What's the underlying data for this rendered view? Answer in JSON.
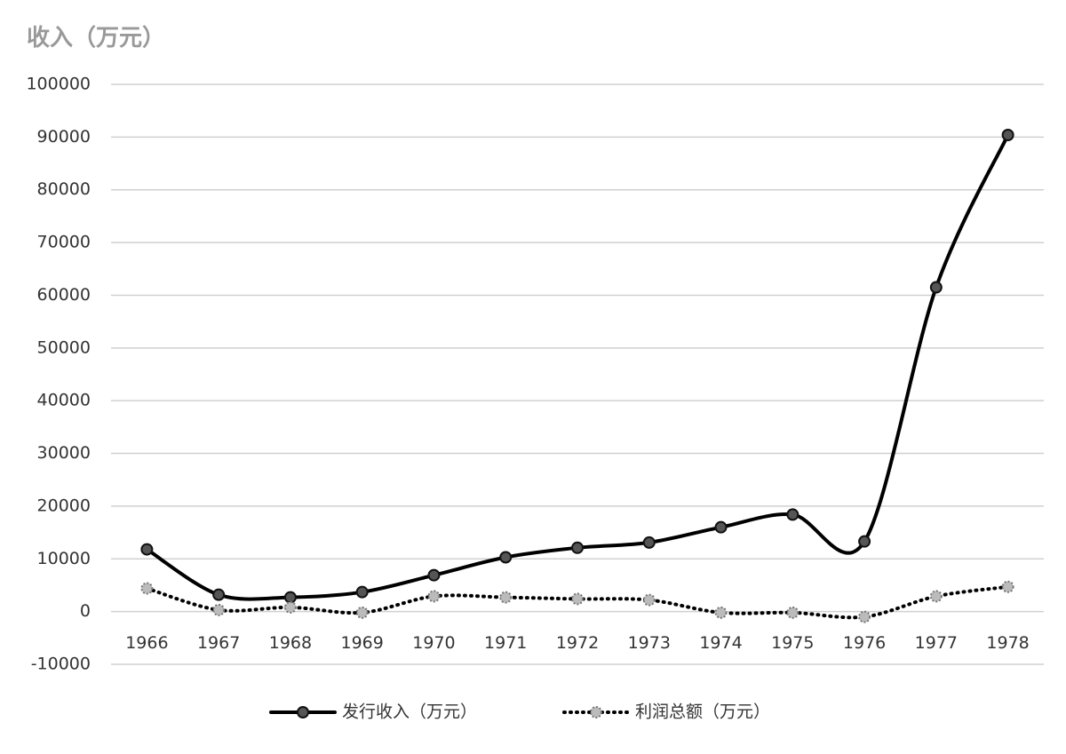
{
  "chart_data": {
    "type": "line",
    "y_axis_title": "收入（万元）",
    "categories": [
      "1966",
      "1967",
      "1968",
      "1969",
      "1970",
      "1971",
      "1972",
      "1973",
      "1974",
      "1975",
      "1976",
      "1977",
      "1978"
    ],
    "series": [
      {
        "name": "发行收入（万元）",
        "color": "#000000",
        "style": "solid",
        "values": [
          11800,
          3200,
          2700,
          3700,
          6900,
          10300,
          12100,
          13100,
          16000,
          18400,
          13300,
          61500,
          90400
        ]
      },
      {
        "name": "利润总额（万元）",
        "color": "#000000",
        "style": "dotted",
        "values": [
          4400,
          300,
          800,
          -200,
          2900,
          2700,
          2400,
          2200,
          -200,
          -200,
          -1000,
          2900,
          4700
        ]
      }
    ],
    "ylim": [
      -10000,
      100000
    ],
    "yticks": [
      -10000,
      0,
      10000,
      20000,
      30000,
      40000,
      50000,
      60000,
      70000,
      80000,
      90000,
      100000
    ],
    "grid": true,
    "legend": "bottom"
  }
}
